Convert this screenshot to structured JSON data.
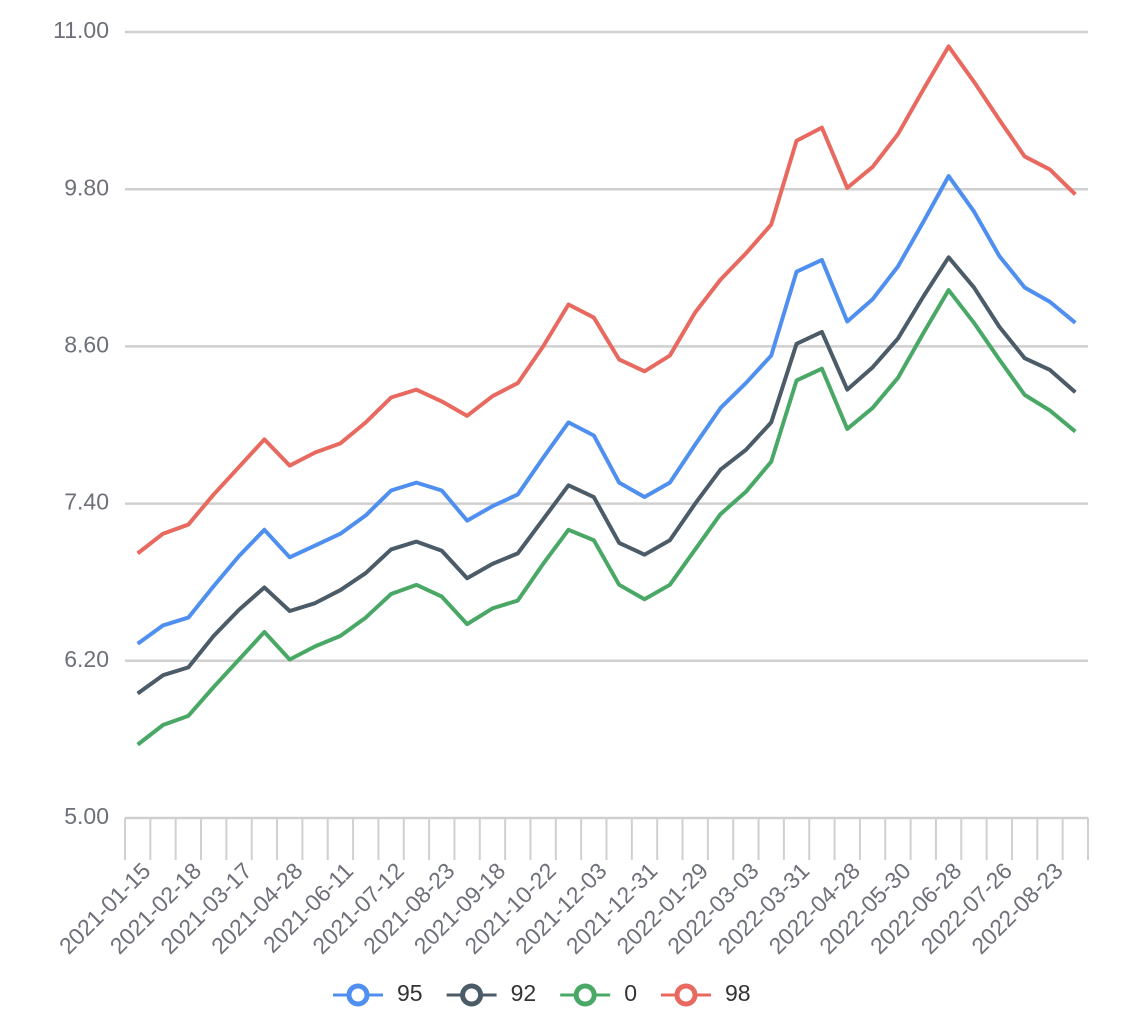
{
  "chart_data": {
    "type": "line",
    "categories": [
      "2021-01-15",
      null,
      "2021-02-18",
      null,
      "2021-03-17",
      null,
      "2021-04-28",
      null,
      "2021-06-11",
      null,
      "2021-07-12",
      null,
      "2021-08-23",
      null,
      "2021-09-18",
      null,
      "2021-10-22",
      null,
      "2021-12-03",
      null,
      "2021-12-31",
      null,
      "2022-01-29",
      null,
      "2022-03-03",
      null,
      "2022-03-31",
      null,
      "2022-04-28",
      null,
      "2022-05-30",
      null,
      "2022-06-28",
      null,
      "2022-07-26",
      null,
      "2022-08-23",
      null
    ],
    "series": [
      {
        "name": "95",
        "color": "#4f8ff0",
        "values": [
          6.33,
          6.47,
          6.53,
          6.77,
          7.0,
          7.2,
          6.99,
          7.08,
          7.17,
          7.31,
          7.5,
          7.56,
          7.5,
          7.27,
          7.38,
          7.47,
          7.75,
          8.02,
          7.92,
          7.56,
          7.45,
          7.56,
          7.85,
          8.13,
          8.32,
          8.53,
          9.17,
          9.26,
          8.79,
          8.96,
          9.21,
          9.55,
          9.9,
          9.63,
          9.29,
          9.05,
          8.94,
          8.78
        ]
      },
      {
        "name": "92",
        "color": "#4b5b67",
        "values": [
          5.95,
          6.09,
          6.15,
          6.39,
          6.59,
          6.76,
          6.58,
          6.64,
          6.74,
          6.87,
          7.05,
          7.11,
          7.04,
          6.83,
          6.94,
          7.02,
          7.28,
          7.54,
          7.45,
          7.1,
          7.01,
          7.12,
          7.4,
          7.66,
          7.81,
          8.02,
          8.62,
          8.71,
          8.27,
          8.44,
          8.66,
          8.98,
          9.28,
          9.05,
          8.75,
          8.51,
          8.42,
          8.25
        ]
      },
      {
        "name": "0",
        "color": "#4aa866",
        "values": [
          5.56,
          5.71,
          5.78,
          6.0,
          6.21,
          6.42,
          6.21,
          6.31,
          6.39,
          6.53,
          6.71,
          6.78,
          6.69,
          6.48,
          6.6,
          6.66,
          6.94,
          7.2,
          7.12,
          6.78,
          6.67,
          6.78,
          7.05,
          7.32,
          7.49,
          7.72,
          8.34,
          8.43,
          7.97,
          8.13,
          8.36,
          8.7,
          9.03,
          8.78,
          8.5,
          8.23,
          8.11,
          7.95
        ]
      },
      {
        "name": "98",
        "color": "#e8695f",
        "values": [
          7.02,
          7.17,
          7.24,
          7.47,
          7.68,
          7.89,
          7.69,
          7.79,
          7.86,
          8.02,
          8.21,
          8.27,
          8.18,
          8.07,
          8.22,
          8.32,
          8.6,
          8.92,
          8.82,
          8.5,
          8.41,
          8.53,
          8.86,
          9.11,
          9.31,
          9.53,
          10.17,
          10.27,
          9.81,
          9.97,
          10.22,
          10.56,
          10.89,
          10.62,
          10.33,
          10.05,
          9.95,
          9.76
        ]
      }
    ],
    "ylim": [
      5,
      11
    ],
    "yticks": [
      {
        "value": 5,
        "label": "5.00"
      },
      {
        "value": 6.2,
        "label": "6.20"
      },
      {
        "value": 7.4,
        "label": "7.40"
      },
      {
        "value": 8.6,
        "label": "8.60"
      },
      {
        "value": 9.8,
        "label": "9.80"
      },
      {
        "value": 11,
        "label": "11.00"
      }
    ],
    "grid": true,
    "legend": "bottom"
  }
}
